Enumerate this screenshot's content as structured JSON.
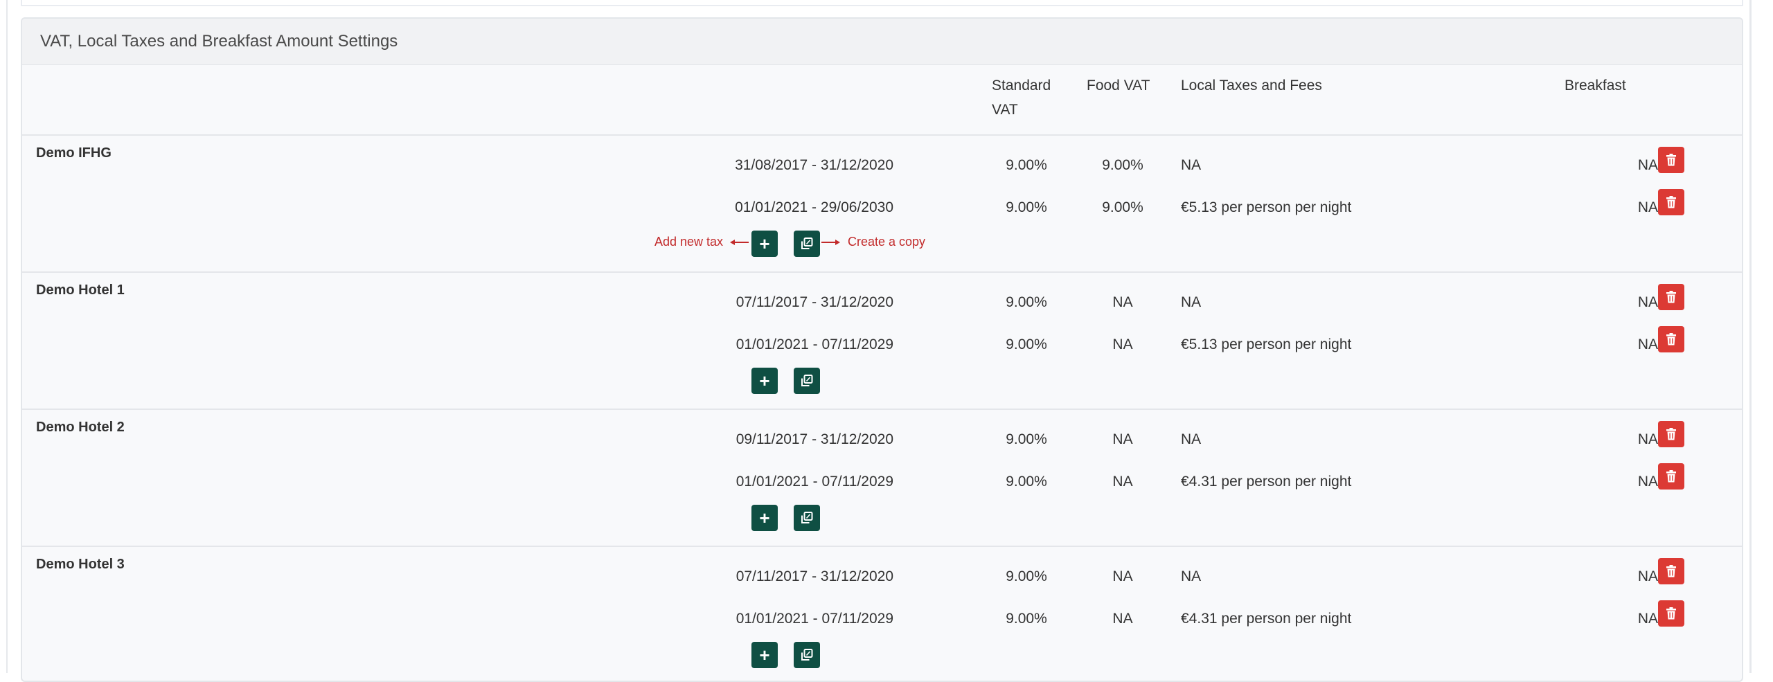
{
  "panel": {
    "title": "VAT, Local Taxes and Breakfast Amount Settings"
  },
  "columns": {
    "standard_vat_line1": "Standard",
    "standard_vat_line2": "VAT",
    "food_vat": "Food VAT",
    "local_taxes": "Local Taxes and Fees",
    "breakfast": "Breakfast"
  },
  "hints": {
    "add_new_tax": "Add new tax",
    "create_copy": "Create a copy"
  },
  "icons": {
    "add": "plus-icon",
    "copy": "copy-icon",
    "delete": "trash-icon"
  },
  "colors": {
    "add_button": "#0f4f43",
    "delete_button": "#dc3a34",
    "hint_text": "#c22a2a"
  },
  "hotels": [
    {
      "name": "Demo IFHG",
      "rows": [
        {
          "period": "31/08/2017 - 31/12/2020",
          "standard_vat": "9.00%",
          "food_vat": "9.00%",
          "local_taxes": "NA",
          "breakfast": "NA"
        },
        {
          "period": "01/01/2021 - 29/06/2030",
          "standard_vat": "9.00%",
          "food_vat": "9.00%",
          "local_taxes": "€5.13 per person per night",
          "breakfast": "NA"
        }
      ]
    },
    {
      "name": "Demo Hotel 1",
      "rows": [
        {
          "period": "07/11/2017 - 31/12/2020",
          "standard_vat": "9.00%",
          "food_vat": "NA",
          "local_taxes": "NA",
          "breakfast": "NA"
        },
        {
          "period": "01/01/2021 - 07/11/2029",
          "standard_vat": "9.00%",
          "food_vat": "NA",
          "local_taxes": "€5.13 per person per night",
          "breakfast": "NA"
        }
      ]
    },
    {
      "name": "Demo Hotel 2",
      "rows": [
        {
          "period": "09/11/2017 - 31/12/2020",
          "standard_vat": "9.00%",
          "food_vat": "NA",
          "local_taxes": "NA",
          "breakfast": "NA"
        },
        {
          "period": "01/01/2021 - 07/11/2029",
          "standard_vat": "9.00%",
          "food_vat": "NA",
          "local_taxes": "€4.31 per person per night",
          "breakfast": "NA"
        }
      ]
    },
    {
      "name": "Demo Hotel 3",
      "rows": [
        {
          "period": "07/11/2017 - 31/12/2020",
          "standard_vat": "9.00%",
          "food_vat": "NA",
          "local_taxes": "NA",
          "breakfast": "NA"
        },
        {
          "period": "01/01/2021 - 07/11/2029",
          "standard_vat": "9.00%",
          "food_vat": "NA",
          "local_taxes": "€4.31 per person per night",
          "breakfast": "NA"
        }
      ]
    }
  ]
}
